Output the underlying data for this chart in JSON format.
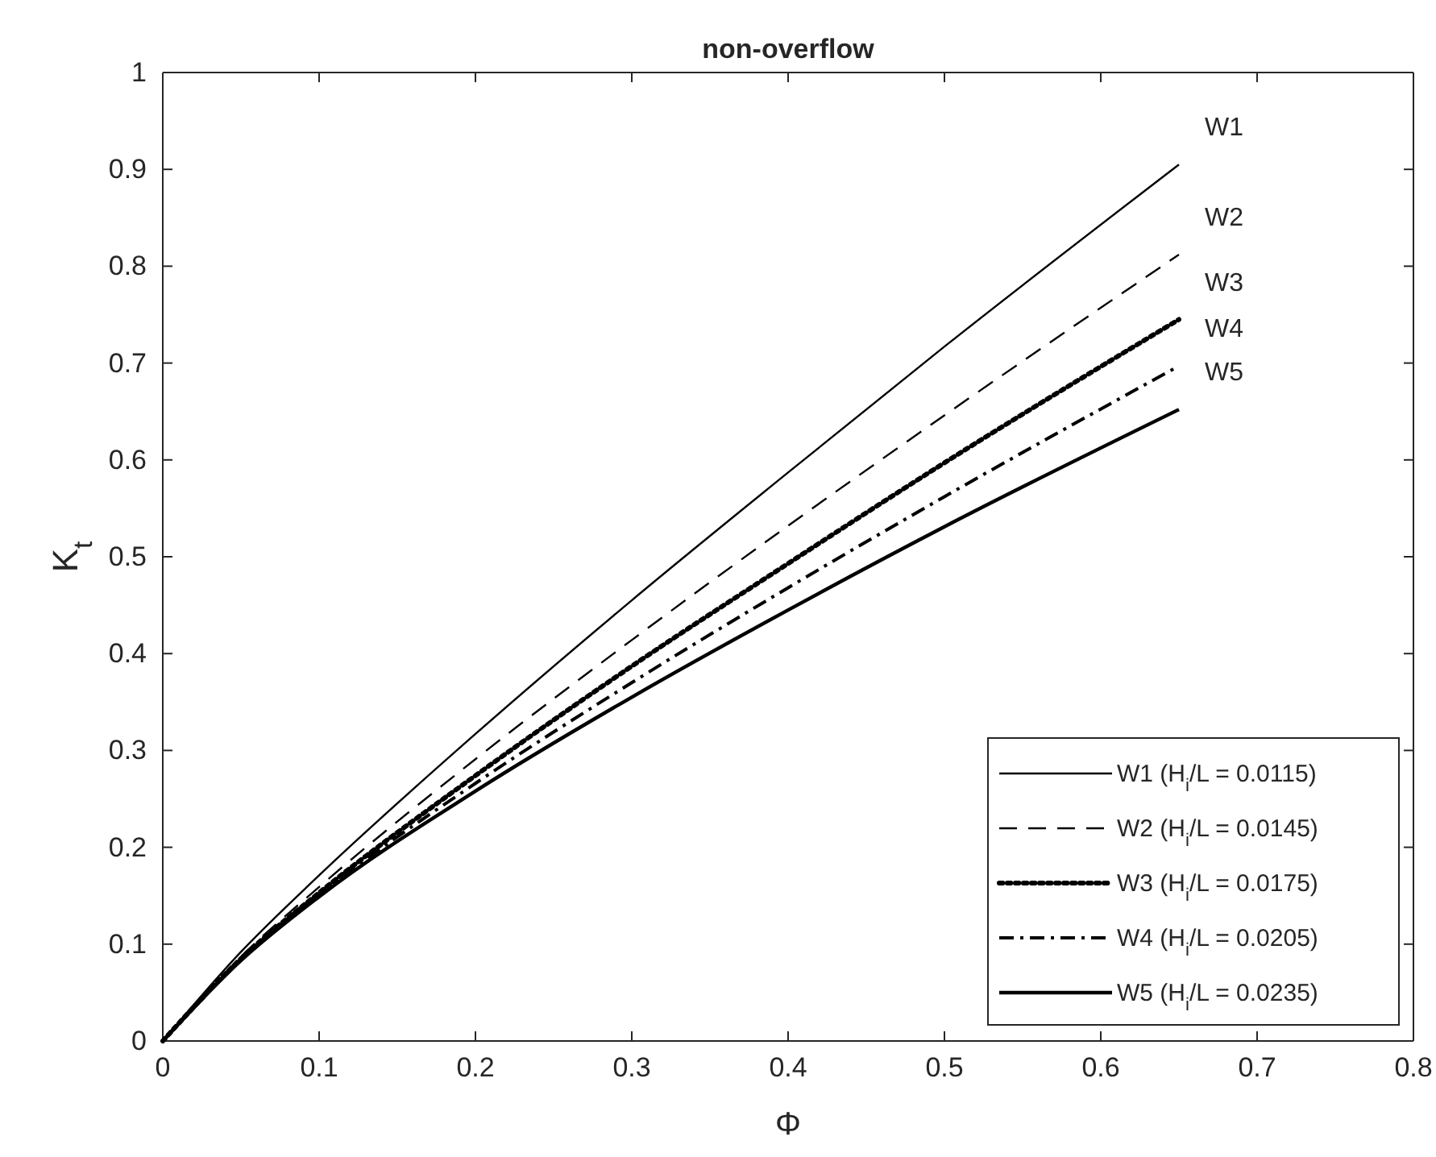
{
  "chart_data": {
    "type": "line",
    "title": "non-overflow",
    "xlabel": "Φ",
    "ylabel": "K$_{t}$",
    "xlim": [
      0,
      0.8
    ],
    "ylim": [
      0,
      1
    ],
    "xticks": [
      0,
      0.1,
      0.2,
      0.3,
      0.4,
      0.5,
      0.6,
      0.7,
      0.8
    ],
    "yticks": [
      0,
      0.1,
      0.2,
      0.3,
      0.4,
      0.5,
      0.6,
      0.7,
      0.8,
      0.9,
      1
    ],
    "x": [
      0,
      0.05,
      0.1,
      0.2,
      0.3,
      0.4,
      0.5,
      0.65
    ],
    "grid": false,
    "legend": "bottom right",
    "marker": "none",
    "series": [
      {
        "name": "W1 (H$_{i}$/L = 0.0115)",
        "color": "#000000",
        "line_style": "solid",
        "values": [
          0,
          0.092,
          0.171,
          0.317,
          0.455,
          0.587,
          0.717,
          0.905
        ]
      },
      {
        "name": "W2 (H$_{i}$/L = 0.0145)",
        "color": "#000000",
        "line_style": "dashed",
        "values": [
          0,
          0.087,
          0.159,
          0.291,
          0.414,
          0.532,
          0.646,
          0.812
        ]
      },
      {
        "name": "W3 (H$_{i}$/L = 0.0175)",
        "color": "#000000",
        "line_style": "dotted",
        "values": [
          0,
          0.085,
          0.153,
          0.274,
          0.387,
          0.493,
          0.597,
          0.745
        ]
      },
      {
        "name": "W4 (H$_{i}$/L = 0.0205)",
        "color": "#000000",
        "line_style": "dashdot",
        "values": [
          0,
          0.084,
          0.151,
          0.266,
          0.37,
          0.468,
          0.562,
          0.697
        ]
      },
      {
        "name": "W5 (H$_{i}$/L = 0.0235)",
        "color": "#000000",
        "line_style": "solid",
        "values": [
          0,
          0.083,
          0.149,
          0.258,
          0.355,
          0.445,
          0.531,
          0.652
        ]
      }
    ],
    "annotations": [
      "W1",
      "W2",
      "W3",
      "W4",
      "W5"
    ]
  }
}
